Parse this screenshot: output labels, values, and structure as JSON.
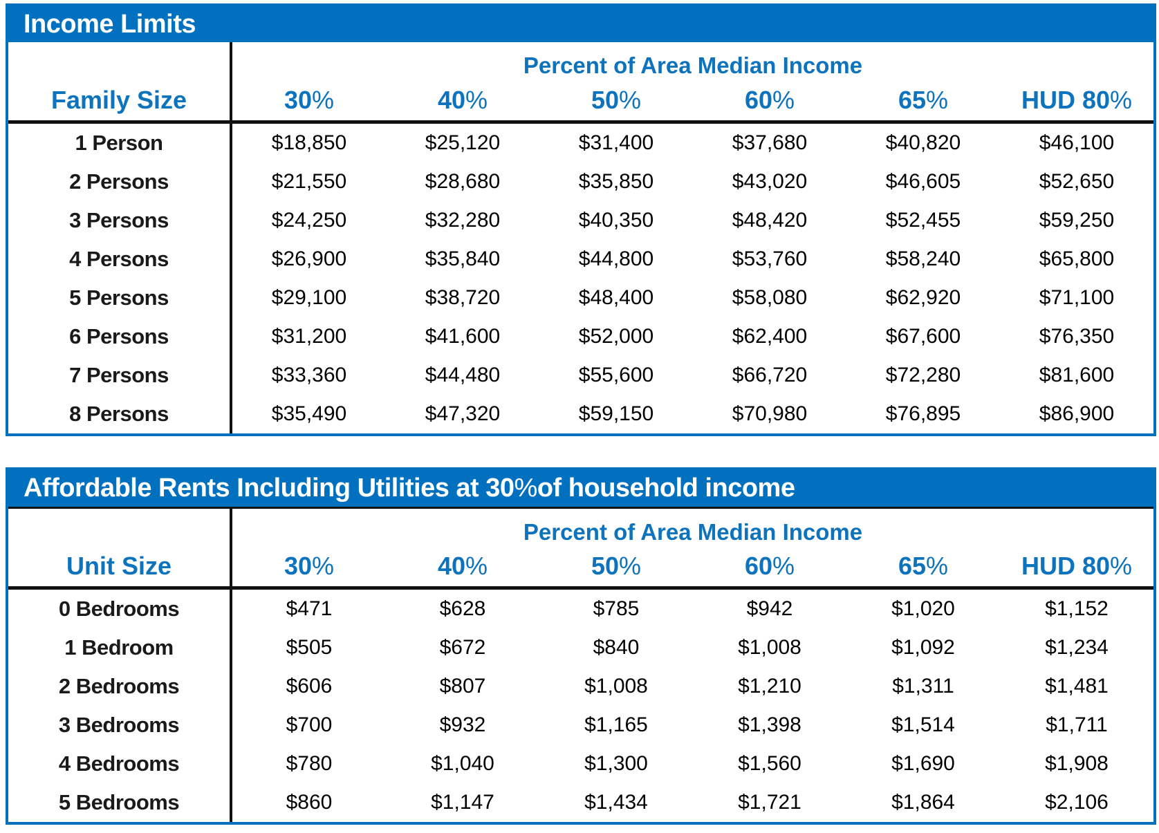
{
  "colors": {
    "bar_blue": "#0070bf",
    "text_blue": "#0d73bc",
    "line_black": "#111111"
  },
  "tables": [
    {
      "title": "Income Limits",
      "group_header": "Percent of Area Median Income",
      "row_header": "Family Size",
      "columns": [
        "30%",
        "40%",
        "50%",
        "60%",
        "65%",
        "HUD 80%"
      ],
      "rows": [
        {
          "label": "1 Person",
          "values": [
            "$18,850",
            "$25,120",
            "$31,400",
            "$37,680",
            "$40,820",
            "$46,100"
          ]
        },
        {
          "label": "2 Persons",
          "values": [
            "$21,550",
            "$28,680",
            "$35,850",
            "$43,020",
            "$46,605",
            "$52,650"
          ]
        },
        {
          "label": "3 Persons",
          "values": [
            "$24,250",
            "$32,280",
            "$40,350",
            "$48,420",
            "$52,455",
            "$59,250"
          ]
        },
        {
          "label": "4 Persons",
          "values": [
            "$26,900",
            "$35,840",
            "$44,800",
            "$53,760",
            "$58,240",
            "$65,800"
          ]
        },
        {
          "label": "5 Persons",
          "values": [
            "$29,100",
            "$38,720",
            "$48,400",
            "$58,080",
            "$62,920",
            "$71,100"
          ]
        },
        {
          "label": "6 Persons",
          "values": [
            "$31,200",
            "$41,600",
            "$52,000",
            "$62,400",
            "$67,600",
            "$76,350"
          ]
        },
        {
          "label": "7 Persons",
          "values": [
            "$33,360",
            "$44,480",
            "$55,600",
            "$66,720",
            "$72,280",
            "$81,600"
          ]
        },
        {
          "label": "8 Persons",
          "values": [
            "$35,490",
            "$47,320",
            "$59,150",
            "$70,980",
            "$76,895",
            "$86,900"
          ]
        }
      ]
    },
    {
      "title": "Affordable Rents Including Utilities at 30% of household income",
      "group_header": "Percent of Area Median Income",
      "row_header": "Unit Size",
      "columns": [
        "30%",
        "40%",
        "50%",
        "60%",
        "65%",
        "HUD 80%"
      ],
      "rows": [
        {
          "label": "0 Bedrooms",
          "values": [
            "$471",
            "$628",
            "$785",
            "$942",
            "$1,020",
            "$1,152"
          ]
        },
        {
          "label": "1 Bedroom",
          "values": [
            "$505",
            "$672",
            "$840",
            "$1,008",
            "$1,092",
            "$1,234"
          ]
        },
        {
          "label": "2 Bedrooms",
          "values": [
            "$606",
            "$807",
            "$1,008",
            "$1,210",
            "$1,311",
            "$1,481"
          ]
        },
        {
          "label": "3 Bedrooms",
          "values": [
            "$700",
            "$932",
            "$1,165",
            "$1,398",
            "$1,514",
            "$1,711"
          ]
        },
        {
          "label": "4 Bedrooms",
          "values": [
            "$780",
            "$1,040",
            "$1,300",
            "$1,560",
            "$1,690",
            "$1,908"
          ]
        },
        {
          "label": "5 Bedrooms",
          "values": [
            "$860",
            "$1,147",
            "$1,434",
            "$1,721",
            "$1,864",
            "$2,106"
          ]
        }
      ]
    }
  ]
}
